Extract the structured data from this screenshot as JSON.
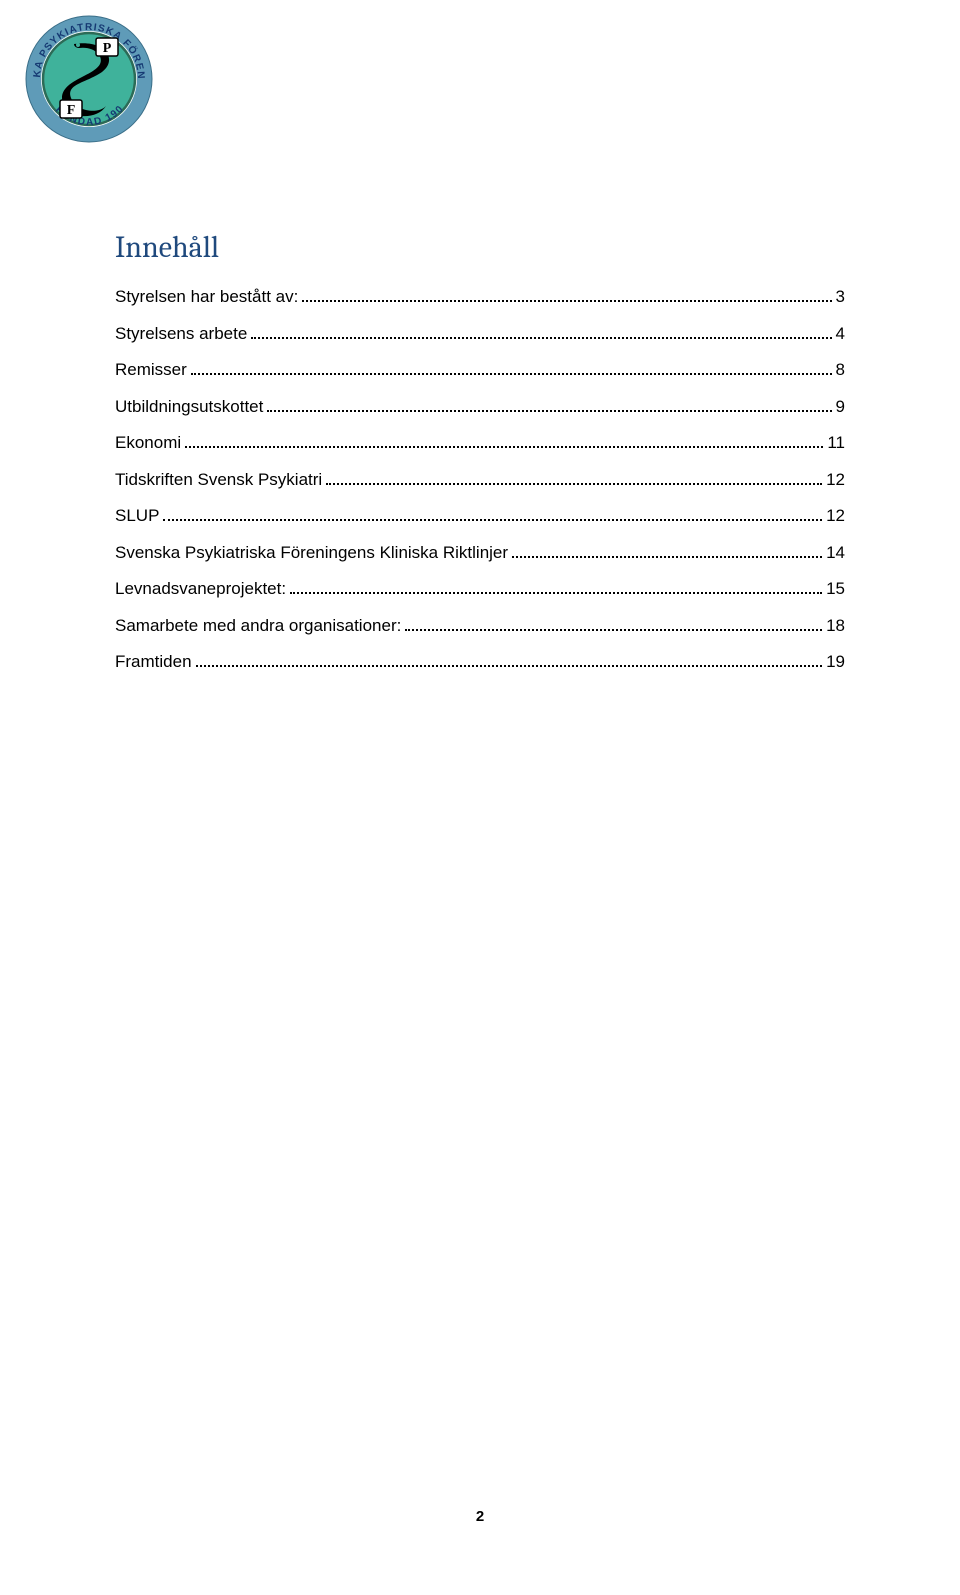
{
  "toc": {
    "title": "Innehåll",
    "title_color": "#1f497d",
    "entries": [
      {
        "label": "Styrelsen har bestått av:",
        "page": "3"
      },
      {
        "label": "Styrelsens arbete",
        "page": "4"
      },
      {
        "label": "Remisser",
        "page": "8"
      },
      {
        "label": "Utbildningsutskottet",
        "page": "9"
      },
      {
        "label": "Ekonomi",
        "page": "11"
      },
      {
        "label": "Tidskriften Svensk Psykiatri",
        "page": "12"
      },
      {
        "label": "SLUP",
        "page": "12"
      },
      {
        "label": "Svenska Psykiatriska Föreningens Kliniska Riktlinjer",
        "page": "14"
      },
      {
        "label": "Levnadsvaneprojektet:",
        "page": "15"
      },
      {
        "label": "Samarbete med andra organisationer:",
        "page": "18"
      },
      {
        "label": "Framtiden",
        "page": "19"
      }
    ]
  },
  "footer": {
    "page_number": "2"
  },
  "logo": {
    "outer_ring_text_top": "SVENSKA PSYKIATRISKA FÖRENINGEN",
    "outer_ring_text_bottom": "GRUNDAD 1905",
    "letter_top": "P",
    "letter_bottom": "F",
    "colors": {
      "ring": "#5f9bb8",
      "disc": "#3fb29b",
      "text": "#163a73",
      "serpent": "#000000",
      "border": "#2c6b57"
    }
  }
}
